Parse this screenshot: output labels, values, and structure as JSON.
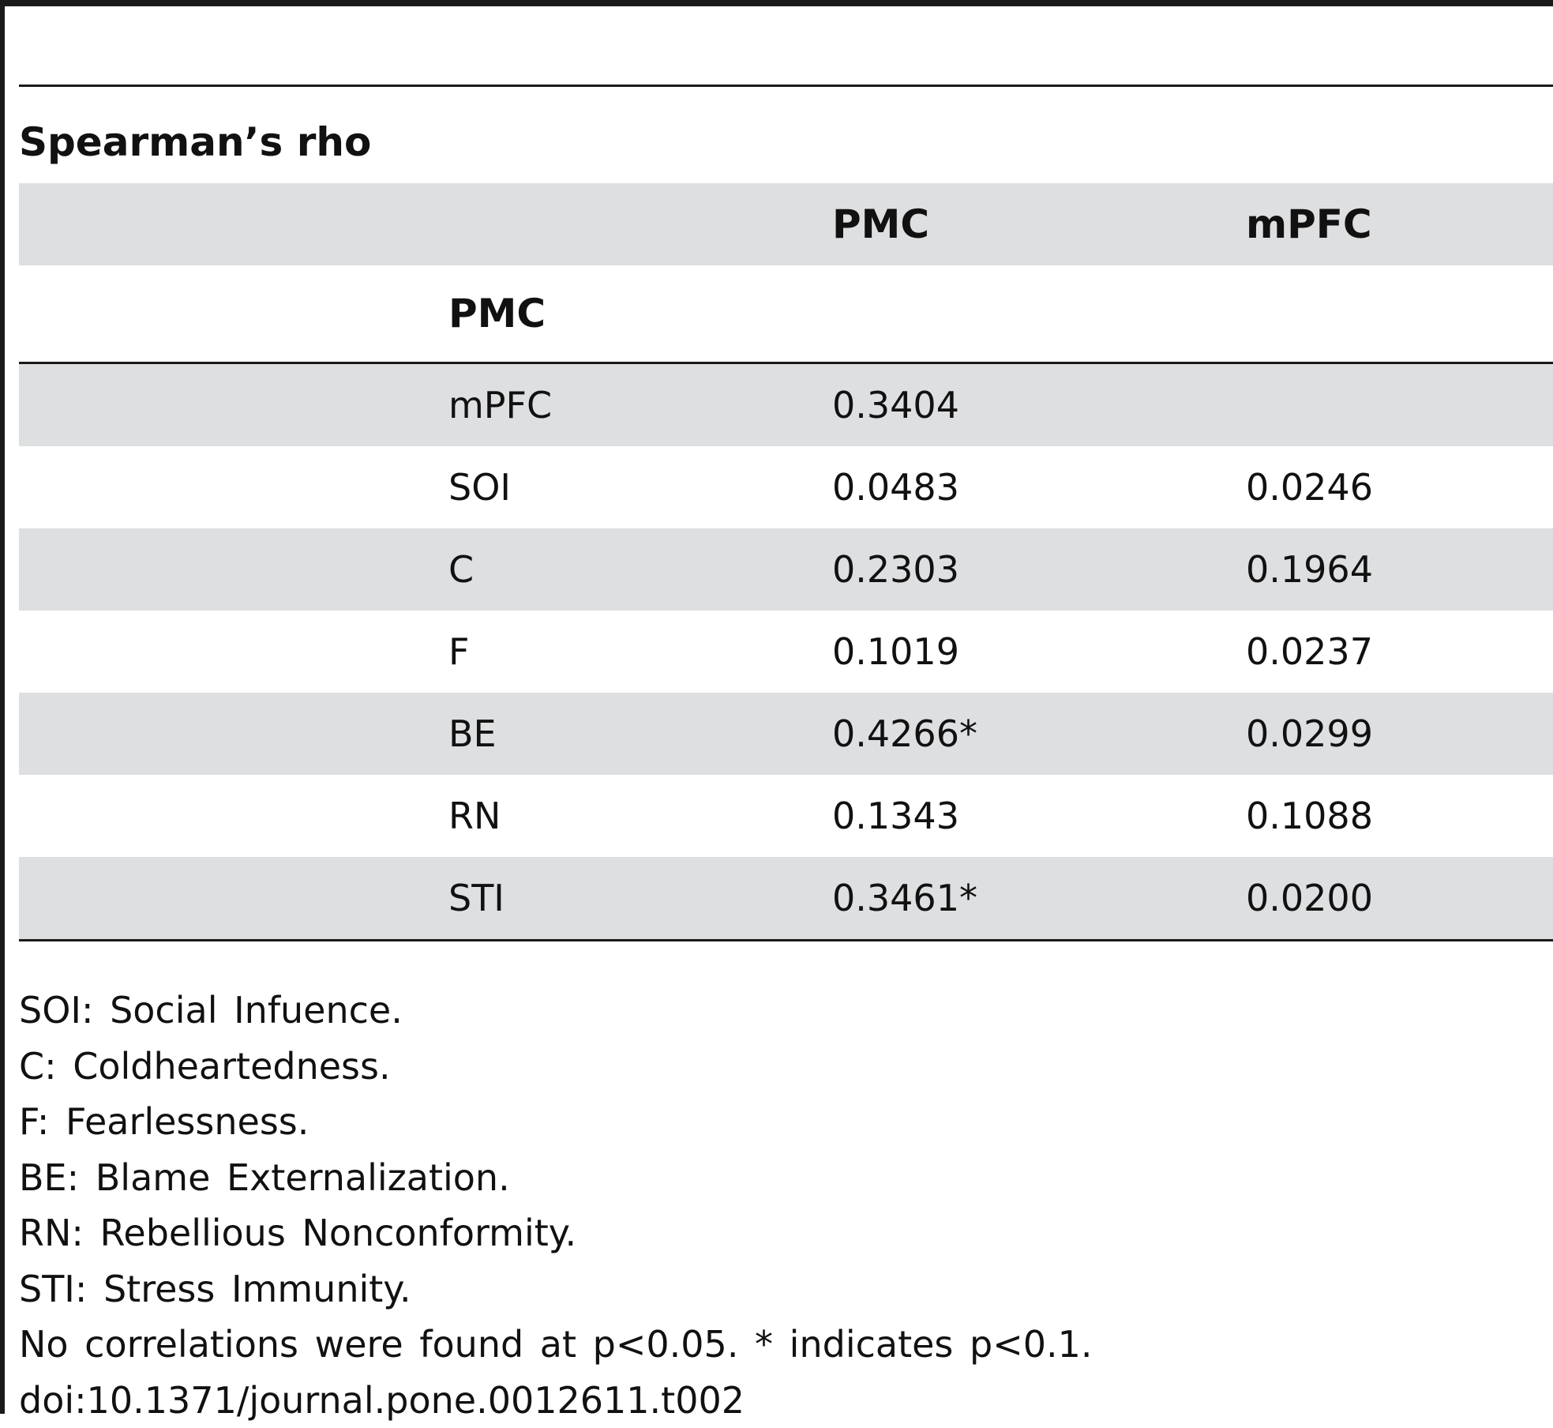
{
  "table": {
    "title": "Spearman’s rho",
    "column_headers": [
      "PMC",
      "mPFC"
    ],
    "row_header": "PMC",
    "rows": [
      {
        "label": "mPFC",
        "pmc": "0.3404",
        "mpfc": ""
      },
      {
        "label": "SOI",
        "pmc": "0.0483",
        "mpfc": "0.0246"
      },
      {
        "label": "C",
        "pmc": "0.2303",
        "mpfc": "0.1964"
      },
      {
        "label": "F",
        "pmc": "0.1019",
        "mpfc": "0.0237"
      },
      {
        "label": "BE",
        "pmc": "0.4266*",
        "mpfc": "0.0299"
      },
      {
        "label": "RN",
        "pmc": "0.1343",
        "mpfc": "0.1088"
      },
      {
        "label": "STI",
        "pmc": "0.3461*",
        "mpfc": "0.0200"
      }
    ]
  },
  "footnotes": [
    "SOI: Social Infuence.",
    "C: Coldheartedness.",
    "F: Fearlessness.",
    "BE: Blame Externalization.",
    "RN: Rebellious Nonconformity.",
    "STI: Stress Immunity.",
    "No correlations were found at p<0.05. * indicates p<0.1.",
    "doi:10.1371/journal.pone.0012611.t002"
  ],
  "colors": {
    "row_shade": "#dedfe1",
    "rule": "#1a1a1a"
  }
}
